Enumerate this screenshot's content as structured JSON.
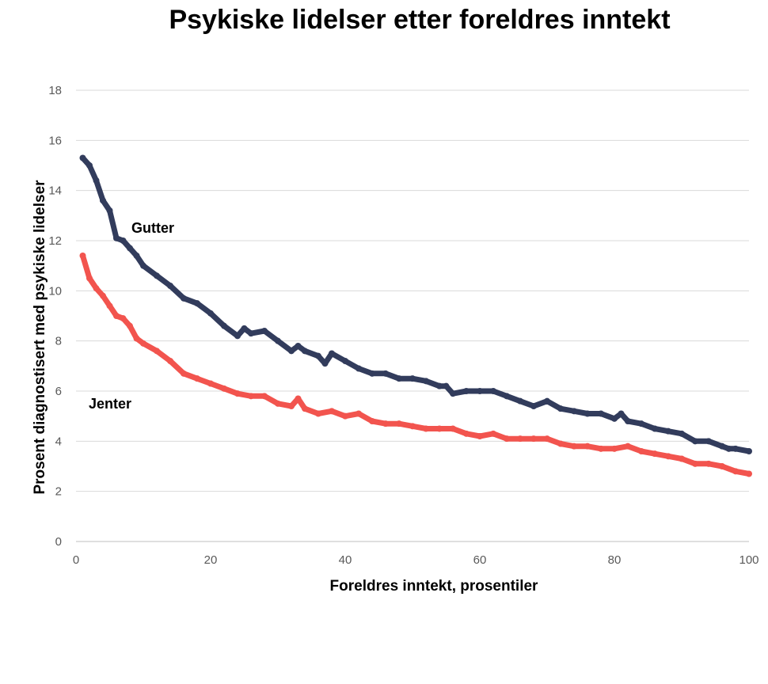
{
  "chart_data": {
    "type": "line",
    "title": "Psykiske lidelser etter foreldres inntekt",
    "xlabel": "Foreldres inntekt, prosentiler",
    "ylabel": "Prosent diagnostisert med psykiske lidelser",
    "xlim": [
      0,
      100
    ],
    "ylim": [
      0,
      18
    ],
    "xticks": [
      0,
      20,
      40,
      60,
      80,
      100
    ],
    "yticks": [
      0,
      2,
      4,
      6,
      8,
      10,
      12,
      14,
      16,
      18
    ],
    "grid": true,
    "legend": "none",
    "series": [
      {
        "name": "Gutter",
        "color": "#323C5C",
        "x": [
          1,
          2,
          3,
          4,
          5,
          6,
          7,
          8,
          9,
          10,
          12,
          14,
          16,
          18,
          20,
          22,
          24,
          25,
          26,
          28,
          30,
          32,
          33,
          34,
          36,
          37,
          38,
          40,
          42,
          44,
          46,
          48,
          50,
          52,
          54,
          55,
          56,
          58,
          60,
          62,
          64,
          66,
          68,
          70,
          72,
          74,
          76,
          78,
          80,
          81,
          82,
          84,
          86,
          88,
          90,
          92,
          94,
          96,
          97,
          98,
          100
        ],
        "y": [
          15.3,
          15.0,
          14.4,
          13.6,
          13.2,
          12.1,
          12.0,
          11.7,
          11.4,
          11.0,
          10.6,
          10.2,
          9.7,
          9.5,
          9.1,
          8.6,
          8.2,
          8.5,
          8.3,
          8.4,
          8.0,
          7.6,
          7.8,
          7.6,
          7.4,
          7.1,
          7.5,
          7.2,
          6.9,
          6.7,
          6.7,
          6.5,
          6.5,
          6.4,
          6.2,
          6.2,
          5.9,
          6.0,
          6.0,
          6.0,
          5.8,
          5.6,
          5.4,
          5.6,
          5.3,
          5.2,
          5.1,
          5.1,
          4.9,
          5.1,
          4.8,
          4.7,
          4.5,
          4.4,
          4.3,
          4.0,
          4.0,
          3.8,
          3.7,
          3.7,
          3.6
        ]
      },
      {
        "name": "Jenter",
        "color": "#F2544E",
        "x": [
          1,
          2,
          3,
          4,
          5,
          6,
          7,
          8,
          9,
          10,
          12,
          14,
          16,
          18,
          20,
          22,
          24,
          26,
          28,
          30,
          32,
          33,
          34,
          36,
          38,
          40,
          42,
          44,
          46,
          48,
          50,
          52,
          54,
          56,
          58,
          60,
          62,
          64,
          66,
          68,
          70,
          72,
          74,
          76,
          78,
          80,
          82,
          84,
          86,
          88,
          90,
          92,
          94,
          96,
          98,
          100
        ],
        "y": [
          11.4,
          10.5,
          10.1,
          9.8,
          9.4,
          9.0,
          8.9,
          8.6,
          8.1,
          7.9,
          7.6,
          7.2,
          6.7,
          6.5,
          6.3,
          6.1,
          5.9,
          5.8,
          5.8,
          5.5,
          5.4,
          5.7,
          5.3,
          5.1,
          5.2,
          5.0,
          5.1,
          4.8,
          4.7,
          4.7,
          4.6,
          4.5,
          4.5,
          4.5,
          4.3,
          4.2,
          4.3,
          4.1,
          4.1,
          4.1,
          4.1,
          3.9,
          3.8,
          3.8,
          3.7,
          3.7,
          3.8,
          3.6,
          3.5,
          3.4,
          3.3,
          3.1,
          3.1,
          3.0,
          2.8,
          2.7
        ]
      }
    ]
  }
}
